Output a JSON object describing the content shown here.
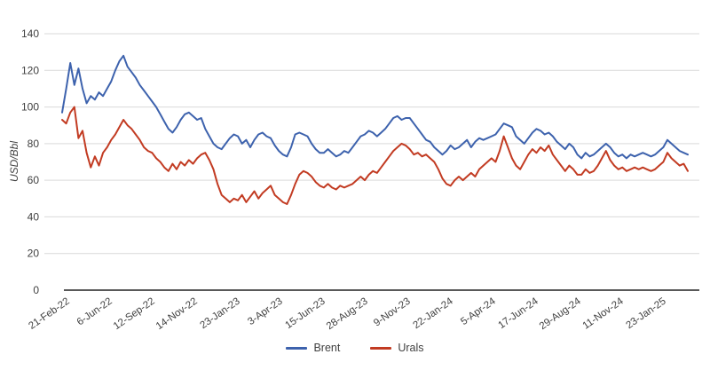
{
  "chart": {
    "y_axis_title": "USD/Bbl"
  },
  "chart_data": {
    "type": "line",
    "title": "",
    "xlabel": "",
    "ylabel": "USD/Bbl",
    "ylim": [
      0,
      140
    ],
    "yticks": [
      0,
      20,
      40,
      60,
      80,
      100,
      120,
      140
    ],
    "grid": true,
    "legend_position": "bottom",
    "categories": [
      "21-Feb-22",
      "6-Jun-22",
      "12-Sep-22",
      "14-Nov-22",
      "23-Jan-23",
      "3-Apr-23",
      "15-Jun-23",
      "28-Aug-23",
      "9-Nov-23",
      "22-Jan-24",
      "5-Apr-24",
      "17-Jun-24",
      "29-Aug-24",
      "11-Nov-24",
      "23-Jan-25"
    ],
    "series": [
      {
        "name": "Brent",
        "color": "#3D62AD",
        "values": [
          97,
          110,
          124,
          112,
          121,
          110,
          102,
          106,
          104,
          108,
          106,
          110,
          114,
          120,
          125,
          128,
          122,
          119,
          116,
          112,
          109,
          106,
          103,
          100,
          96,
          92,
          88,
          86,
          89,
          93,
          96,
          97,
          95,
          93,
          94,
          88,
          84,
          80,
          78,
          77,
          80,
          83,
          85,
          84,
          80,
          82,
          78,
          82,
          85,
          86,
          84,
          83,
          79,
          76,
          74,
          73,
          78,
          85,
          86,
          85,
          84,
          80,
          77,
          75,
          75,
          77,
          75,
          73,
          74,
          76,
          75,
          78,
          81,
          84,
          85,
          87,
          86,
          84,
          86,
          88,
          91,
          94,
          95,
          93,
          94,
          94,
          91,
          88,
          85,
          82,
          81,
          78,
          76,
          74,
          76,
          79,
          77,
          78,
          80,
          82,
          78,
          81,
          83,
          82,
          83,
          84,
          85,
          88,
          91,
          90,
          89,
          84,
          82,
          80,
          83,
          86,
          88,
          87,
          85,
          86,
          84,
          81,
          79,
          77,
          80,
          78,
          74,
          72,
          75,
          73,
          74,
          76,
          78,
          80,
          78,
          75,
          73,
          74,
          72,
          74,
          73,
          74,
          75,
          74,
          73,
          74,
          76,
          78,
          82,
          80,
          78,
          76,
          75,
          74
        ]
      },
      {
        "name": "Urals",
        "color": "#C23B22",
        "values": [
          93,
          91,
          97,
          100,
          83,
          87,
          75,
          67,
          73,
          68,
          75,
          78,
          82,
          85,
          89,
          93,
          90,
          88,
          85,
          82,
          78,
          76,
          75,
          72,
          70,
          67,
          65,
          69,
          66,
          70,
          68,
          71,
          69,
          72,
          74,
          75,
          71,
          66,
          58,
          52,
          50,
          48,
          50,
          49,
          52,
          48,
          51,
          54,
          50,
          53,
          55,
          57,
          52,
          50,
          48,
          47,
          52,
          58,
          63,
          65,
          64,
          62,
          59,
          57,
          56,
          58,
          56,
          55,
          57,
          56,
          57,
          58,
          60,
          62,
          60,
          63,
          65,
          64,
          67,
          70,
          73,
          76,
          78,
          80,
          79,
          77,
          74,
          75,
          73,
          74,
          72,
          70,
          66,
          61,
          58,
          57,
          60,
          62,
          60,
          62,
          64,
          62,
          66,
          68,
          70,
          72,
          70,
          76,
          84,
          78,
          72,
          68,
          66,
          70,
          74,
          77,
          75,
          78,
          76,
          79,
          74,
          71,
          68,
          65,
          68,
          66,
          63,
          63,
          66,
          64,
          65,
          68,
          72,
          76,
          71,
          68,
          66,
          67,
          65,
          66,
          67,
          66,
          67,
          66,
          65,
          66,
          68,
          70,
          75,
          72,
          70,
          68,
          69,
          65
        ]
      }
    ],
    "colors": {
      "gridline": "#d9d9d9",
      "axis_line": "#595959",
      "tick_label": "#404040"
    }
  }
}
